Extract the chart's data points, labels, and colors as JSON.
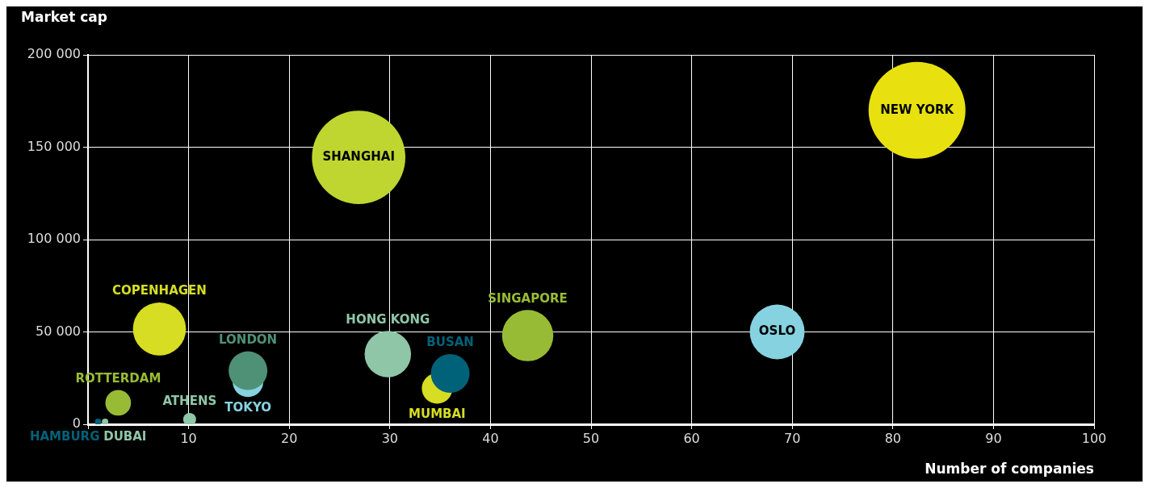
{
  "chart_data": {
    "type": "bubble",
    "xlabel": "Number of companies",
    "ylabel": "Market cap",
    "xlim": [
      0,
      100
    ],
    "xticks": [
      {
        "value": 0,
        "label": null
      },
      10,
      20,
      30,
      40,
      50,
      60,
      70,
      80,
      90,
      100
    ],
    "ylim": [
      0,
      200000
    ],
    "yticks": [
      0,
      {
        "value": 50000,
        "label": "50 000"
      },
      {
        "value": 100000,
        "label": "100 000"
      },
      {
        "value": 150000,
        "label": "150 000"
      },
      {
        "value": 200000,
        "label": "200 000"
      }
    ],
    "grid": true,
    "legend": false,
    "series": [
      {
        "name": "NEW YORK",
        "color": "#e8e10f",
        "x": [
          82.4
        ],
        "values": [
          170000
        ],
        "sizes": [
          1
        ]
      },
      {
        "name": "SHANGHAI",
        "color": "#bed62f",
        "x": [
          26.9
        ],
        "values": [
          144500
        ],
        "sizes": [
          0.93
        ]
      },
      {
        "name": "COPENHAGEN",
        "color": "#d6dd22",
        "x": [
          7.1
        ],
        "values": [
          51600
        ],
        "sizes": [
          0.3
        ]
      },
      {
        "name": "OSLO",
        "color": "#86d2e0",
        "x": [
          68.5
        ],
        "values": [
          50000
        ],
        "sizes": [
          0.32
        ]
      },
      {
        "name": "SINGAPORE",
        "color": "#98bb35",
        "x": [
          43.7
        ],
        "values": [
          48000
        ],
        "sizes": [
          0.28
        ]
      },
      {
        "name": "HONG KONG",
        "color": "#8fc6a8",
        "x": [
          29.8
        ],
        "values": [
          38000
        ],
        "sizes": [
          0.23
        ]
      },
      {
        "name": "BUSAN",
        "color": "#006279",
        "x": [
          36
        ],
        "values": [
          27500
        ],
        "sizes": [
          0.16
        ]
      },
      {
        "name": "MUMBAI",
        "color": "#d6dd22",
        "x": [
          34.7
        ],
        "values": [
          19400
        ],
        "sizes": [
          0.1
        ]
      },
      {
        "name": "LONDON",
        "color": "#4f9176",
        "x": [
          15.9
        ],
        "values": [
          29000
        ],
        "sizes": [
          0.16
        ]
      },
      {
        "name": "TOKYO",
        "color": "#86d2e0",
        "x": [
          15.9
        ],
        "values": [
          23000
        ],
        "sizes": [
          0.1
        ]
      },
      {
        "name": "ROTTERDAM",
        "color": "#98bb35",
        "x": [
          3
        ],
        "values": [
          11600
        ],
        "sizes": [
          0.07
        ]
      },
      {
        "name": "ATHENS",
        "color": "#8fc6a8",
        "x": [
          10.1
        ],
        "values": [
          2600
        ],
        "sizes": [
          0.018
        ]
      },
      {
        "name": "HAMBURG",
        "color": "#006279",
        "x": [
          1
        ],
        "values": [
          1300
        ],
        "sizes": [
          0.0044
        ]
      },
      {
        "name": "DUBAI",
        "color": "#8fc6a8",
        "x": [
          1.7
        ],
        "values": [
          1300
        ],
        "sizes": [
          0.0044
        ]
      }
    ]
  }
}
